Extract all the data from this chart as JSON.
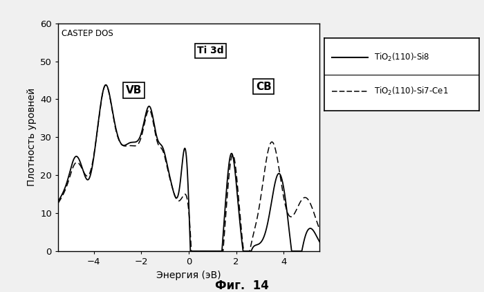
{
  "title": "CASTEP DOS",
  "xlabel": "Энергия (эВ)",
  "ylabel": "Плотность уровней",
  "caption": "Фиг.  14",
  "xlim": [
    -5.5,
    5.5
  ],
  "ylim": [
    0,
    60
  ],
  "yticks": [
    0,
    10,
    20,
    30,
    40,
    50,
    60
  ],
  "xticks": [
    -4,
    -2,
    0,
    2,
    4
  ],
  "legend1": "TiO$_2$(110)-Si8",
  "legend2": "TiO$_2$(110)-Si7-Ce1",
  "label_VB": "VB",
  "label_Ti3d": "Ti 3d",
  "label_CB": "CB",
  "solid_color": "#000000",
  "dashed_color": "#000000",
  "background_color": "#f0f0f0",
  "plot_bg": "#ffffff"
}
